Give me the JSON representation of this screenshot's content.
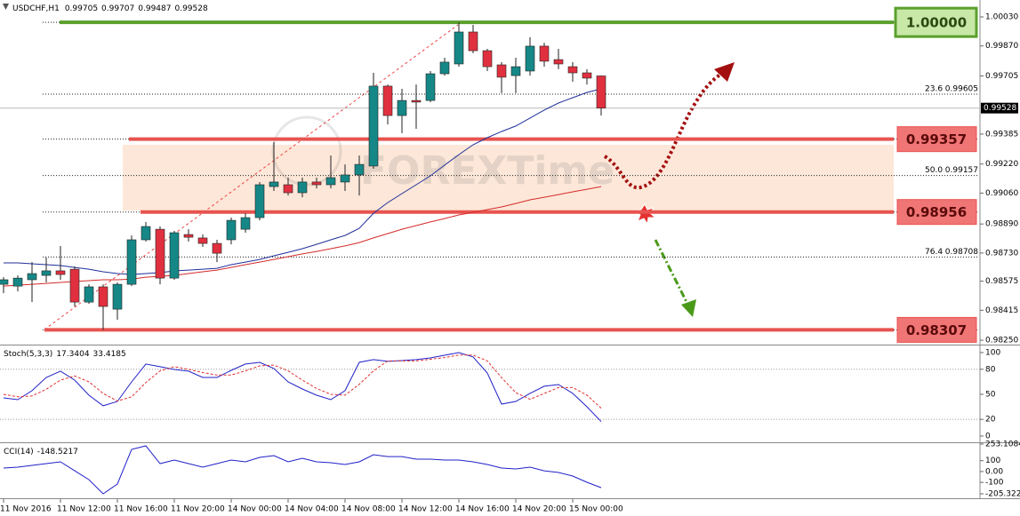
{
  "chart_data": [
    {
      "type": "candlestick",
      "title": "USDCHF,H1",
      "categories": [
        "11 Nov 2016",
        null,
        null,
        null,
        "11 Nov 12:00",
        null,
        null,
        null,
        "11 Nov 16:00",
        null,
        null,
        null,
        "11 Nov 20:00",
        null,
        null,
        null,
        "14 Nov 00:00",
        null,
        null,
        null,
        "14 Nov 04:00",
        null,
        null,
        null,
        "14 Nov 08:00",
        null,
        null,
        null,
        "14 Nov 12:00",
        null,
        null,
        null,
        "14 Nov 16:00",
        null,
        null,
        null,
        "14 Nov 20:00",
        null,
        null,
        null,
        "15 Nov 00:00",
        null,
        null
      ],
      "open": [
        0.98558,
        0.98548,
        0.98583,
        0.98607,
        0.98632,
        0.98641,
        0.9846,
        0.98544,
        0.98421,
        0.98558,
        0.98803,
        0.98861,
        0.98592,
        0.98832,
        0.98813,
        0.98783,
        0.98803,
        0.98861,
        0.98925,
        0.99096,
        0.99106,
        0.99062,
        0.99121,
        0.99106,
        0.99121,
        0.9916,
        0.99209,
        0.99649,
        0.99487,
        0.9957,
        0.9957,
        0.99717,
        0.99771,
        0.99947,
        0.99844,
        0.99766,
        0.99707,
        0.99732,
        0.99869,
        0.99795,
        0.99756,
        0.99722,
        0.99705
      ],
      "high": [
        0.98597,
        0.98607,
        0.9868,
        0.98705,
        0.98769,
        0.98656,
        0.98558,
        0.98558,
        0.98568,
        0.98827,
        0.98901,
        0.98876,
        0.98852,
        0.98861,
        0.98832,
        0.98803,
        0.98925,
        0.98949,
        0.99121,
        0.99341,
        0.99145,
        0.99145,
        0.99145,
        0.99267,
        0.99218,
        0.99267,
        0.99722,
        0.99658,
        0.99634,
        0.99658,
        0.99732,
        0.99805,
        1.0,
        0.99986,
        0.99854,
        0.99781,
        0.99805,
        0.99918,
        0.99888,
        0.99854,
        0.99781,
        0.99742,
        0.99707
      ],
      "low": [
        0.98509,
        0.98519,
        0.9846,
        0.98568,
        0.98583,
        0.98436,
        0.98451,
        0.98307,
        0.98363,
        0.98548,
        0.98793,
        0.98558,
        0.98583,
        0.98793,
        0.98764,
        0.9868,
        0.98778,
        0.98842,
        0.9891,
        0.99072,
        0.99047,
        0.99037,
        0.99086,
        0.99086,
        0.99072,
        0.99047,
        0.99194,
        0.99438,
        0.9939,
        0.99414,
        0.99561,
        0.99707,
        0.99756,
        0.9983,
        0.99732,
        0.9961,
        0.9961,
        0.99707,
        0.99756,
        0.99742,
        0.99673,
        0.99658,
        0.99487
      ],
      "close": [
        0.98583,
        0.98592,
        0.98617,
        0.98632,
        0.98612,
        0.9846,
        0.98544,
        0.98436,
        0.98558,
        0.98803,
        0.98876,
        0.98592,
        0.98842,
        0.98817,
        0.98783,
        0.98729,
        0.9891,
        0.98925,
        0.99106,
        0.99121,
        0.99062,
        0.99121,
        0.99106,
        0.99145,
        0.9916,
        0.99218,
        0.99649,
        0.99487,
        0.9957,
        0.99561,
        0.99717,
        0.99781,
        0.99947,
        0.99844,
        0.99756,
        0.99698,
        0.99756,
        0.99869,
        0.99786,
        0.99771,
        0.99722,
        0.99693,
        0.99528
      ],
      "up_color": "#168787",
      "down_color": "#e0303f",
      "series": [
        {
          "color": "#1f2f9a",
          "values": [
            0.98676,
            0.98676,
            0.98671,
            0.98666,
            0.98661,
            0.98651,
            0.98641,
            0.98627,
            0.98617,
            0.98612,
            0.98617,
            0.98622,
            0.98632,
            0.98636,
            0.98641,
            0.98646,
            0.98666,
            0.9868,
            0.98695,
            0.98715,
            0.98734,
            0.98754,
            0.98778,
            0.98803,
            0.98827,
            0.98866,
            0.98949,
            0.99008,
            0.99057,
            0.99106,
            0.99155,
            0.99214,
            0.99272,
            0.99326,
            0.99365,
            0.99399,
            0.99429,
            0.99473,
            0.99517,
            0.99556,
            0.99585,
            0.99614,
            0.99634
          ]
        },
        {
          "color": "#d52b2b",
          "values": [
            0.98548,
            0.98553,
            0.98558,
            0.98563,
            0.98568,
            0.98573,
            0.98578,
            0.98583,
            0.98583,
            0.98587,
            0.98597,
            0.98602,
            0.98607,
            0.98617,
            0.98627,
            0.98636,
            0.98651,
            0.98666,
            0.9868,
            0.98695,
            0.9871,
            0.98725,
            0.98739,
            0.98754,
            0.98769,
            0.98788,
            0.98813,
            0.98837,
            0.98861,
            0.98881,
            0.98901,
            0.9892,
            0.9894,
            0.98954,
            0.98969,
            0.98984,
            0.99003,
            0.99023,
            0.99037,
            0.99052,
            0.99067,
            0.99081,
            0.99096
          ]
        }
      ],
      "levels": [
        {
          "value": 1,
          "label": "1.00000",
          "color": "#5aa02c",
          "fill": "#c8e8a8"
        },
        {
          "value": 0.99357,
          "color": "#e8534f",
          "fill": "#f07575"
        },
        {
          "value": 0.98956,
          "color": "#e8534f",
          "fill": "#f07575"
        },
        {
          "value": 0.98307,
          "color": "#e8534f",
          "fill": "#f07575"
        }
      ],
      "fib": [
        {
          "ratio": "23.6",
          "value": 0.99605
        },
        {
          "ratio": "50.0",
          "value": 0.99157
        },
        {
          "ratio": "76.4",
          "value": 0.98708
        }
      ],
      "watermark": "FOREXTime",
      "ylim": [
        0.98226,
        1.00123
      ],
      "yticks": [
        {
          "value": 1.0003,
          "label": "1.00030"
        },
        {
          "value": 0.9987,
          "label": "0.99870"
        },
        {
          "value": 0.99705,
          "label": "0.99705"
        },
        {
          "value": 0.99385,
          "label": "0.99385"
        },
        {
          "value": 0.9922,
          "label": "0.99220"
        },
        {
          "value": 0.9906,
          "label": "0.99060"
        },
        {
          "value": 0.9889,
          "label": "0.98890"
        },
        {
          "value": 0.9873,
          "label": "0.98730"
        },
        {
          "value": 0.98575,
          "label": "0.98575"
        },
        {
          "value": 0.98415,
          "label": "0.98415"
        },
        {
          "value": 0.9825,
          "label": "0.98250"
        }
      ]
    },
    {
      "type": "line",
      "title": "Stoch(5,3,3)",
      "series": [
        {
          "color": "#2020c8",
          "values": [
            45.7,
            43.6,
            54.3,
            70.2,
            77.7,
            67.0,
            48.9,
            36.2,
            41.5,
            64.9,
            86.2,
            83.0,
            79.8,
            77.7,
            70.2,
            70.2,
            78.7,
            86.2,
            88.3,
            80.9,
            64.9,
            56.4,
            48.9,
            43.6,
            54.3,
            88.3,
            91.5,
            89.4,
            90.4,
            91.5,
            93.6,
            96.8,
            100,
            94.7,
            75.5,
            38.3,
            41.5,
            51.1,
            59.6,
            61.7,
            51.1,
            35.1,
            17.3404
          ]
        },
        {
          "color": "#e03030",
          "style": "dashed",
          "values": [
            50,
            47,
            48,
            56,
            67,
            72,
            65,
            51,
            42,
            47,
            64,
            78,
            83,
            80,
            76,
            73,
            73,
            78,
            84,
            85,
            78,
            67,
            57,
            50,
            49,
            62,
            78,
            90,
            90,
            90,
            92,
            94,
            97,
            97,
            90,
            70,
            52,
            44,
            51,
            58,
            58,
            49,
            33.4185
          ]
        }
      ],
      "levels": [
        80,
        20
      ],
      "ylim": [
        -6.4,
        107.4
      ],
      "yticks": [
        100,
        80,
        50,
        20,
        0
      ]
    },
    {
      "type": "line",
      "title": "CCI(14)",
      "series": [
        {
          "color": "#2020c8",
          "values": [
            32,
            40,
            57,
            73,
            89,
            7,
            -75,
            -205,
            -115,
            204,
            237,
            73,
            106,
            73,
            40,
            73,
            106,
            89,
            130,
            147,
            89,
            122,
            89,
            81,
            65,
            89,
            155,
            138,
            138,
            114,
            114,
            106,
            106,
            89,
            65,
            32,
            24,
            40,
            7,
            -9,
            -42,
            -99,
            -148.5217
          ]
        }
      ],
      "ylim": [
        -205.322,
        253.1084
      ],
      "yticks": [
        253.1084,
        100,
        {
          "value": 0,
          "label": "0.00"
        },
        -100,
        -205.322
      ]
    }
  ]
}
